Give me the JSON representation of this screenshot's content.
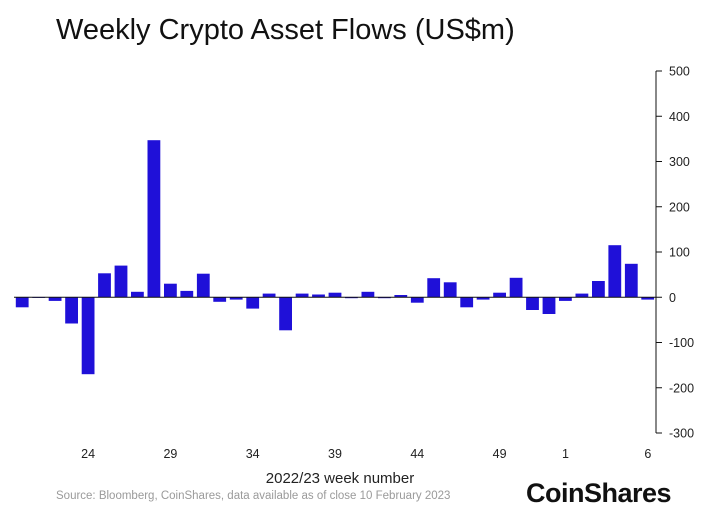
{
  "header": {
    "title": "Weekly Crypto Asset Flows (US$m)"
  },
  "footer": {
    "source": "Source: Bloomberg, CoinShares, data available as of close 10 February 2023",
    "logo": "CoinShares"
  },
  "colors": {
    "bar": "#1f10d8",
    "axis": "#111111"
  },
  "chart_data": {
    "type": "bar",
    "title": "Weekly Crypto Asset Flows (US$m)",
    "xlabel": "2022/23 week number",
    "ylabel": "",
    "ylim": [
      -300,
      500
    ],
    "yticks": [
      500,
      400,
      300,
      200,
      100,
      0,
      -100,
      -200,
      -300
    ],
    "y_axis_position": "right",
    "grid": false,
    "legend": "none",
    "categories": [
      "20",
      "21",
      "22",
      "23",
      "24",
      "25",
      "26",
      "27",
      "28",
      "29",
      "30",
      "31",
      "32",
      "33",
      "34",
      "35",
      "36",
      "37",
      "38",
      "39",
      "40",
      "41",
      "42",
      "43",
      "44",
      "45",
      "46",
      "47",
      "48",
      "49",
      "50",
      "51",
      "52",
      "1",
      "2",
      "3",
      "4",
      "5",
      "6"
    ],
    "xtick_labels": [
      "24",
      "29",
      "34",
      "39",
      "44",
      "49",
      "1",
      "6"
    ],
    "values": [
      -22,
      0,
      -8,
      -58,
      -170,
      53,
      70,
      12,
      347,
      30,
      14,
      52,
      -10,
      -5,
      -25,
      8,
      -73,
      8,
      6,
      10,
      -2,
      12,
      -2,
      5,
      -12,
      42,
      33,
      -22,
      -5,
      10,
      43,
      -28,
      -37,
      -8,
      8,
      36,
      115,
      74,
      -5
    ]
  }
}
